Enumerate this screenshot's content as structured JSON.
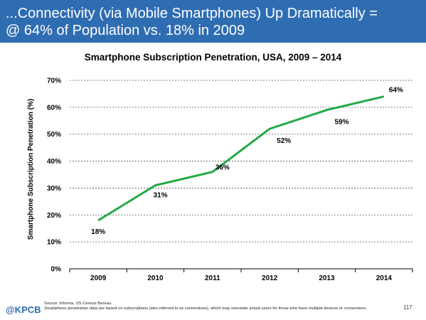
{
  "header": {
    "line1": "...Connectivity (via Mobile Smartphones) Up Dramatically =",
    "line2": "@ 64% of Population vs. 18% in 2009"
  },
  "chart_data": {
    "type": "line",
    "title": "Smartphone Subscription Penetration, USA, 2009 – 2014",
    "xlabel": "",
    "ylabel": "Smartphone Subscription Penetration (%)",
    "categories": [
      "2009",
      "2010",
      "2011",
      "2012",
      "2013",
      "2014"
    ],
    "series": [
      {
        "name": "",
        "values": [
          18,
          31,
          36,
          52,
          59,
          64
        ],
        "labels": [
          "18%",
          "31%",
          "36%",
          "52%",
          "59%",
          "64%"
        ],
        "color": "#22aa44"
      }
    ],
    "ylim": [
      0,
      70
    ],
    "yticks": [
      0,
      10,
      20,
      30,
      40,
      50,
      60,
      70
    ],
    "ytick_labels": [
      "0%",
      "10%",
      "20%",
      "30%",
      "40%",
      "50%",
      "60%",
      "70%"
    ],
    "grid": true
  },
  "footer": {
    "logo": "@KPCB",
    "source_line1": "Source: Informa, US Census Bureau.",
    "source_line2": "Smartphone penetration data are based on subscriptions (also referred to as connections), which may overstate actual users for those who have multiple devices or connections.",
    "page_number": "117"
  }
}
